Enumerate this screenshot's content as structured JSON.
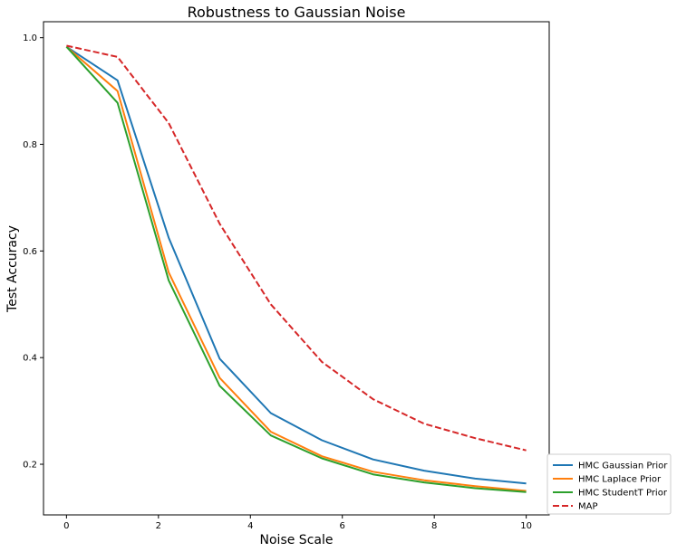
{
  "chart_data": {
    "type": "line",
    "title": "Robustness to Gaussian Noise",
    "xlabel": "Noise Scale",
    "ylabel": "Test Accuracy",
    "xlim": [
      -0.5,
      10.5
    ],
    "ylim": [
      0.105,
      1.03
    ],
    "xticks": [
      0,
      2,
      4,
      6,
      8,
      10
    ],
    "xtick_labels": [
      "0",
      "2",
      "4",
      "6",
      "8",
      "10"
    ],
    "yticks": [
      0.2,
      0.4,
      0.6,
      0.8,
      1.0
    ],
    "ytick_labels": [
      "0.2",
      "0.4",
      "0.6",
      "0.8",
      "1.0"
    ],
    "grid": false,
    "legend_position": "lower-right-outside",
    "x": [
      0,
      1.111,
      2.222,
      3.333,
      4.444,
      5.556,
      6.667,
      7.778,
      8.889,
      10
    ],
    "series": [
      {
        "name": "HMC Gaussian Prior",
        "color": "#1f77b4",
        "dash": "solid",
        "values": [
          0.983,
          0.92,
          0.625,
          0.398,
          0.296,
          0.245,
          0.209,
          0.188,
          0.173,
          0.164
        ]
      },
      {
        "name": "HMC Laplace Prior",
        "color": "#ff7f0e",
        "dash": "solid",
        "values": [
          0.983,
          0.9,
          0.56,
          0.362,
          0.261,
          0.215,
          0.186,
          0.17,
          0.159,
          0.15
        ]
      },
      {
        "name": "HMC StudentT Prior",
        "color": "#2ca02c",
        "dash": "solid",
        "values": [
          0.983,
          0.878,
          0.545,
          0.347,
          0.254,
          0.211,
          0.181,
          0.166,
          0.155,
          0.148
        ]
      },
      {
        "name": "MAP",
        "color": "#d62728",
        "dash": "dashed",
        "values": [
          0.985,
          0.964,
          0.84,
          0.651,
          0.5,
          0.392,
          0.322,
          0.276,
          0.249,
          0.226
        ]
      }
    ]
  }
}
